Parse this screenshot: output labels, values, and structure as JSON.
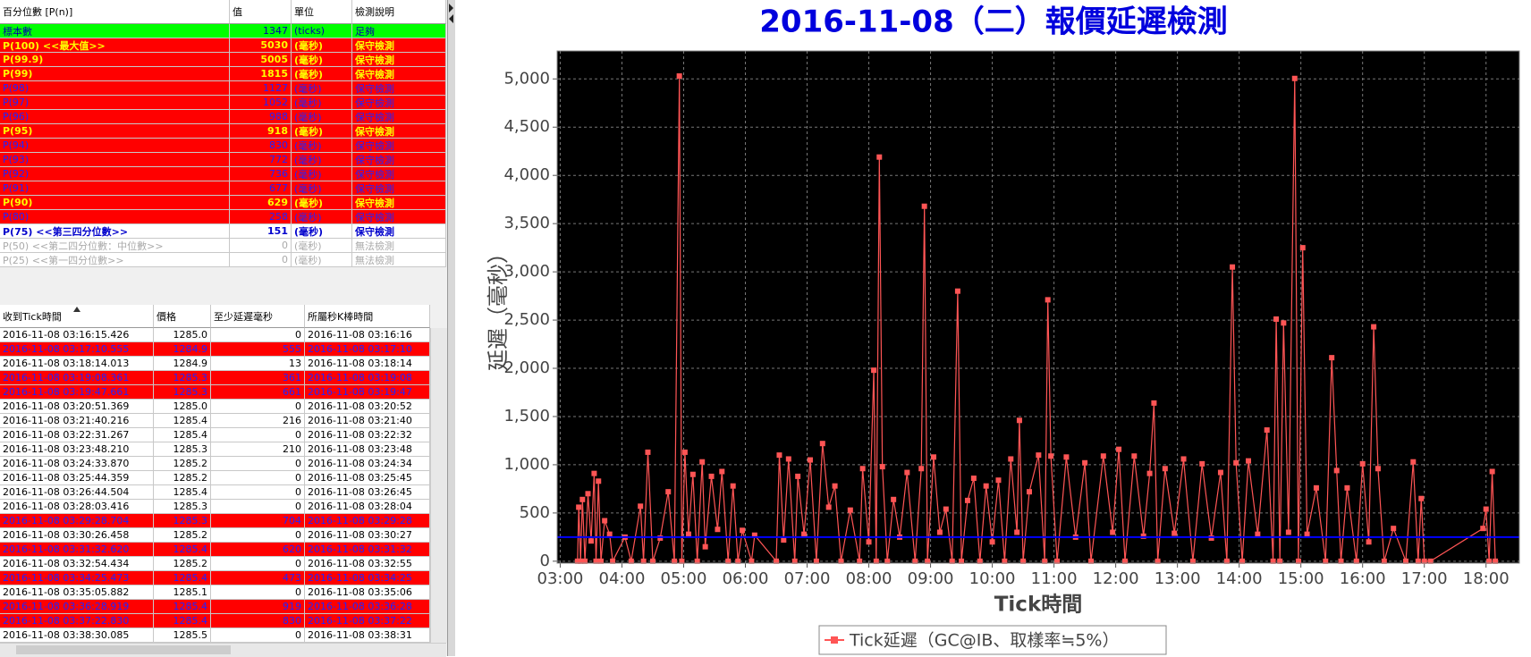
{
  "percentile_table": {
    "headers": [
      "百分位數 [P(n)]",
      "值",
      "單位",
      "檢測說明"
    ],
    "rows": [
      {
        "cells": [
          "標本數",
          "1347",
          "(ticks)",
          "足夠"
        ],
        "background": "#00ff00",
        "color": "#0000aa",
        "bold": false
      },
      {
        "cells": [
          "P(100)  <<最大值>>",
          "5030",
          "(毫秒)",
          "保守檢測"
        ],
        "background": "#ff0000",
        "color": "#ffff00",
        "bold": true
      },
      {
        "cells": [
          "P(99.9)",
          "5005",
          "(毫秒)",
          "保守檢測"
        ],
        "background": "#ff0000",
        "color": "#ffff00",
        "bold": true
      },
      {
        "cells": [
          "P(99)",
          "1815",
          "(毫秒)",
          "保守檢測"
        ],
        "background": "#ff0000",
        "color": "#ffff00",
        "bold": true
      },
      {
        "cells": [
          "P(98)",
          "1127",
          "(毫秒)",
          "保守檢測"
        ],
        "background": "#ff0000",
        "color": "#2222ff",
        "bold": false
      },
      {
        "cells": [
          "P(97)",
          "1052",
          "(毫秒)",
          "保守檢測"
        ],
        "background": "#ff0000",
        "color": "#2222ff",
        "bold": false
      },
      {
        "cells": [
          "P(96)",
          "988",
          "(毫秒)",
          "保守檢測"
        ],
        "background": "#ff0000",
        "color": "#2222ff",
        "bold": false
      },
      {
        "cells": [
          "P(95)",
          "918",
          "(毫秒)",
          "保守檢測"
        ],
        "background": "#ff0000",
        "color": "#ffff00",
        "bold": true
      },
      {
        "cells": [
          "P(94)",
          "830",
          "(毫秒)",
          "保守檢測"
        ],
        "background": "#ff0000",
        "color": "#2222ff",
        "bold": false
      },
      {
        "cells": [
          "P(93)",
          "772",
          "(毫秒)",
          "保守檢測"
        ],
        "background": "#ff0000",
        "color": "#2222ff",
        "bold": false
      },
      {
        "cells": [
          "P(92)",
          "736",
          "(毫秒)",
          "保守檢測"
        ],
        "background": "#ff0000",
        "color": "#2222ff",
        "bold": false
      },
      {
        "cells": [
          "P(91)",
          "677",
          "(毫秒)",
          "保守檢測"
        ],
        "background": "#ff0000",
        "color": "#2222ff",
        "bold": false
      },
      {
        "cells": [
          "P(90)",
          "629",
          "(毫秒)",
          "保守檢測"
        ],
        "background": "#ff0000",
        "color": "#ffff00",
        "bold": true
      },
      {
        "cells": [
          "P(80)",
          "258",
          "(毫秒)",
          "保守檢測"
        ],
        "background": "#ff0000",
        "color": "#2222ff",
        "bold": false
      },
      {
        "cells": [
          "P(75)  <<第三四分位數>>",
          "151",
          "(毫秒)",
          "保守檢測"
        ],
        "background": "#ffffff",
        "color": "#0000cc",
        "bold": true
      },
      {
        "cells": [
          "P(50)  <<第二四分位數：中位數>>",
          "0",
          "(毫秒)",
          "無法檢測"
        ],
        "background": "#ffffff",
        "color": "#aaaaaa",
        "bold": false
      },
      {
        "cells": [
          "P(25)  <<第一四分位數>>",
          "0",
          "(毫秒)",
          "無法檢測"
        ],
        "background": "#ffffff",
        "color": "#aaaaaa",
        "bold": false
      }
    ]
  },
  "tick_table": {
    "headers": [
      "收到Tick時間",
      "價格",
      "至少延遲毫秒",
      "所屬秒K棒時間"
    ],
    "rows": [
      {
        "cells": [
          "2016-11-08 03:16:15.426",
          "1285.0",
          "0",
          "2016-11-08 03:16:16"
        ],
        "background": "#ffffff",
        "color": "#000000"
      },
      {
        "cells": [
          "2016-11-08 03:17:10.555",
          "1284.9",
          "555",
          "2016-11-08 03:17:10"
        ],
        "background": "#ff0000",
        "color": "#2222ff"
      },
      {
        "cells": [
          "2016-11-08 03:18:14.013",
          "1284.9",
          "13",
          "2016-11-08 03:18:14"
        ],
        "background": "#ffffff",
        "color": "#000000"
      },
      {
        "cells": [
          "2016-11-08 03:19:08.361",
          "1285.3",
          "361",
          "2016-11-08 03:19:08"
        ],
        "background": "#ff0000",
        "color": "#2222ff"
      },
      {
        "cells": [
          "2016-11-08 03:19:47.661",
          "1285.3",
          "661",
          "2016-11-08 03:19:47"
        ],
        "background": "#ff0000",
        "color": "#2222ff"
      },
      {
        "cells": [
          "2016-11-08 03:20:51.369",
          "1285.0",
          "0",
          "2016-11-08 03:20:52"
        ],
        "background": "#ffffff",
        "color": "#000000"
      },
      {
        "cells": [
          "2016-11-08 03:21:40.216",
          "1285.4",
          "216",
          "2016-11-08 03:21:40"
        ],
        "background": "#ffffff",
        "color": "#000000"
      },
      {
        "cells": [
          "2016-11-08 03:22:31.267",
          "1285.4",
          "0",
          "2016-11-08 03:22:32"
        ],
        "background": "#ffffff",
        "color": "#000000"
      },
      {
        "cells": [
          "2016-11-08 03:23:48.210",
          "1285.3",
          "210",
          "2016-11-08 03:23:48"
        ],
        "background": "#ffffff",
        "color": "#000000"
      },
      {
        "cells": [
          "2016-11-08 03:24:33.870",
          "1285.2",
          "0",
          "2016-11-08 03:24:34"
        ],
        "background": "#ffffff",
        "color": "#000000"
      },
      {
        "cells": [
          "2016-11-08 03:25:44.359",
          "1285.2",
          "0",
          "2016-11-08 03:25:45"
        ],
        "background": "#ffffff",
        "color": "#000000"
      },
      {
        "cells": [
          "2016-11-08 03:26:44.504",
          "1285.4",
          "0",
          "2016-11-08 03:26:45"
        ],
        "background": "#ffffff",
        "color": "#000000"
      },
      {
        "cells": [
          "2016-11-08 03:28:03.416",
          "1285.3",
          "0",
          "2016-11-08 03:28:04"
        ],
        "background": "#ffffff",
        "color": "#000000"
      },
      {
        "cells": [
          "2016-11-08 03:29:28.704",
          "1285.3",
          "704",
          "2016-11-08 03:29:28"
        ],
        "background": "#ff0000",
        "color": "#2222ff"
      },
      {
        "cells": [
          "2016-11-08 03:30:26.458",
          "1285.2",
          "0",
          "2016-11-08 03:30:27"
        ],
        "background": "#ffffff",
        "color": "#000000"
      },
      {
        "cells": [
          "2016-11-08 03:31:32.620",
          "1285.4",
          "620",
          "2016-11-08 03:31:32"
        ],
        "background": "#ff0000",
        "color": "#2222ff"
      },
      {
        "cells": [
          "2016-11-08 03:32:54.434",
          "1285.2",
          "0",
          "2016-11-08 03:32:55"
        ],
        "background": "#ffffff",
        "color": "#000000"
      },
      {
        "cells": [
          "2016-11-08 03:34:25.473",
          "1285.4",
          "473",
          "2016-11-08 03:34:25"
        ],
        "background": "#ff0000",
        "color": "#2222ff"
      },
      {
        "cells": [
          "2016-11-08 03:35:05.882",
          "1285.1",
          "0",
          "2016-11-08 03:35:06"
        ],
        "background": "#ffffff",
        "color": "#000000"
      },
      {
        "cells": [
          "2016-11-08 03:36:28.919",
          "1285.4",
          "919",
          "2016-11-08 03:36:28"
        ],
        "background": "#ff0000",
        "color": "#2222ff"
      },
      {
        "cells": [
          "2016-11-08 03:37:22.830",
          "1285.4",
          "830",
          "2016-11-08 03:37:22"
        ],
        "background": "#ff0000",
        "color": "#2222ff"
      },
      {
        "cells": [
          "2016-11-08 03:38:30.085",
          "1285.5",
          "0",
          "2016-11-08 03:38:31"
        ],
        "background": "#ffffff",
        "color": "#000000"
      }
    ]
  },
  "chart_data": {
    "type": "line",
    "title": "2016-11-08（二）報價延遲檢測",
    "y_label": "延遲（毫秒）",
    "x_label": "Tick時間",
    "legend": "bottom",
    "grid": true,
    "background": "#000000",
    "reference_line": {
      "value": 250,
      "color": "#0000ff"
    },
    "xlim": [
      2.95,
      18.54
    ],
    "ylim": [
      -20,
      5290
    ],
    "xticks": [
      {
        "value": 3,
        "label": "03:00"
      },
      {
        "value": 4,
        "label": "04:00"
      },
      {
        "value": 5,
        "label": "05:00"
      },
      {
        "value": 6,
        "label": "06:00"
      },
      {
        "value": 7,
        "label": "07:00"
      },
      {
        "value": 8,
        "label": "08:00"
      },
      {
        "value": 9,
        "label": "09:00"
      },
      {
        "value": 10,
        "label": "10:00"
      },
      {
        "value": 11,
        "label": "11:00"
      },
      {
        "value": 12,
        "label": "12:00"
      },
      {
        "value": 13,
        "label": "13:00"
      },
      {
        "value": 14,
        "label": "14:00"
      },
      {
        "value": 15,
        "label": "15:00"
      },
      {
        "value": 16,
        "label": "16:00"
      },
      {
        "value": 17,
        "label": "17:00"
      },
      {
        "value": 18,
        "label": "18:00"
      }
    ],
    "yticks": [
      0,
      500,
      {
        "value": 1000,
        "label": "1,000"
      },
      {
        "value": 1500,
        "label": "1,500"
      },
      {
        "value": 2000,
        "label": "2,000"
      },
      {
        "value": 2500,
        "label": "2,500"
      },
      {
        "value": 3000,
        "label": "3,000"
      },
      {
        "value": 3500,
        "label": "3,500"
      },
      {
        "value": 4000,
        "label": "4,000"
      },
      {
        "value": 4500,
        "label": "4,500"
      },
      {
        "value": 5000,
        "label": "5,000"
      }
    ],
    "x": [
      3.28,
      3.3,
      3.33,
      3.36,
      3.4,
      3.45,
      3.5,
      3.55,
      3.58,
      3.62,
      3.66,
      3.72,
      3.8,
      3.85,
      4.05,
      4.15,
      4.3,
      4.35,
      4.42,
      4.5,
      4.62,
      4.75,
      4.85,
      4.93,
      4.97,
      5.02,
      5.08,
      5.15,
      5.22,
      5.3,
      5.35,
      5.45,
      5.55,
      5.62,
      5.72,
      5.8,
      5.88,
      5.95,
      6.1,
      6.15,
      6.5,
      6.55,
      6.62,
      6.7,
      6.8,
      6.85,
      6.95,
      7.05,
      7.15,
      7.25,
      7.35,
      7.45,
      7.55,
      7.7,
      7.85,
      7.9,
      8.0,
      8.08,
      8.12,
      8.17,
      8.22,
      8.3,
      8.4,
      8.5,
      8.62,
      8.75,
      8.85,
      8.9,
      8.95,
      9.05,
      9.15,
      9.25,
      9.35,
      9.44,
      9.5,
      9.6,
      9.7,
      9.8,
      9.9,
      10.0,
      10.1,
      10.2,
      10.3,
      10.4,
      10.44,
      10.5,
      10.6,
      10.75,
      10.85,
      10.9,
      10.95,
      11.05,
      11.2,
      11.35,
      11.5,
      11.6,
      11.8,
      11.95,
      12.05,
      12.15,
      12.3,
      12.45,
      12.55,
      12.62,
      12.68,
      12.8,
      12.95,
      13.1,
      13.25,
      13.4,
      13.55,
      13.7,
      13.8,
      13.89,
      13.95,
      14.05,
      14.15,
      14.3,
      14.45,
      14.55,
      14.6,
      14.66,
      14.72,
      14.8,
      14.9,
      14.96,
      15.03,
      15.1,
      15.25,
      15.4,
      15.5,
      15.58,
      15.65,
      15.75,
      15.9,
      16.0,
      16.1,
      16.18,
      16.25,
      16.35,
      16.5,
      16.7,
      16.82,
      16.9,
      16.95,
      17.0,
      17.1,
      17.95,
      18.0,
      18.05,
      18.1,
      18.15
    ],
    "series": [
      {
        "name": "Tick延遲（GC@IB、取樣率≒5%）",
        "color": "#ff5555",
        "values": [
          0,
          560,
          0,
          640,
          0,
          700,
          210,
          910,
          0,
          830,
          0,
          420,
          280,
          0,
          250,
          0,
          570,
          0,
          1130,
          0,
          240,
          720,
          0,
          5030,
          0,
          1130,
          280,
          900,
          0,
          1030,
          150,
          880,
          330,
          930,
          0,
          780,
          0,
          320,
          0,
          270,
          0,
          1100,
          220,
          1060,
          0,
          880,
          280,
          1050,
          0,
          1220,
          560,
          780,
          0,
          530,
          0,
          960,
          200,
          1980,
          0,
          4190,
          980,
          0,
          640,
          250,
          920,
          0,
          960,
          3680,
          0,
          1080,
          300,
          540,
          0,
          2800,
          0,
          630,
          860,
          0,
          780,
          200,
          840,
          0,
          1060,
          300,
          1460,
          0,
          720,
          1100,
          0,
          2710,
          1090,
          0,
          1080,
          250,
          1020,
          0,
          1090,
          300,
          1160,
          0,
          1090,
          260,
          910,
          1640,
          0,
          960,
          290,
          1060,
          0,
          1010,
          240,
          920,
          0,
          3050,
          1020,
          0,
          1040,
          280,
          1360,
          0,
          2510,
          0,
          2470,
          300,
          5005,
          0,
          3250,
          280,
          760,
          0,
          2110,
          940,
          0,
          760,
          0,
          1010,
          200,
          2430,
          960,
          0,
          340,
          0,
          1030,
          0,
          650,
          0,
          0,
          340,
          540,
          0,
          930,
          0
        ]
      }
    ]
  }
}
